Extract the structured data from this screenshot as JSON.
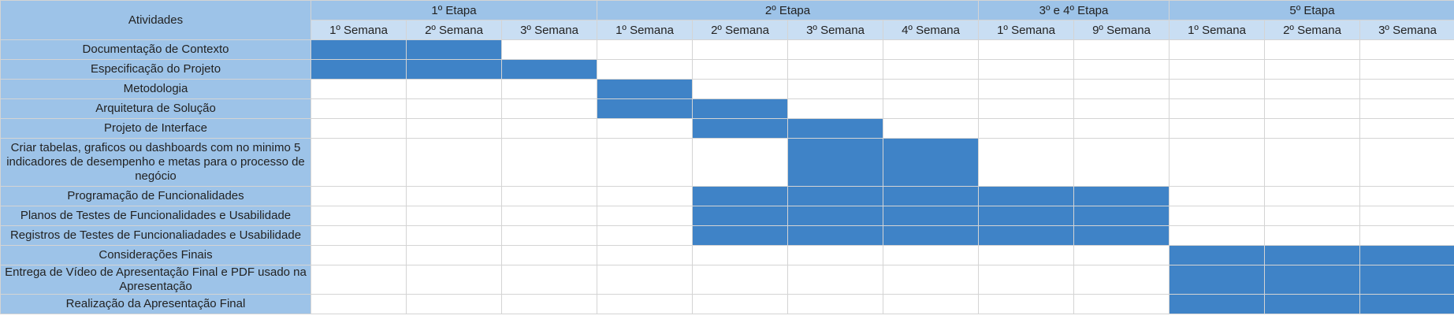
{
  "header": {
    "activities_label": "Atividades",
    "stages": [
      {
        "label": "1º Etapa",
        "span": 3
      },
      {
        "label": "2º Etapa",
        "span": 4
      },
      {
        "label": "3º e 4º Etapa",
        "span": 2
      },
      {
        "label": "5º Etapa",
        "span": 3
      }
    ],
    "weeks": [
      "1º Semana",
      "2º Semana",
      "3º Semana",
      "1º Semana",
      "2º Semana",
      "3º Semana",
      "4º Semana",
      "1º Semana",
      "9º Semana",
      "1º Semana",
      "2º Semana",
      "3º Semana"
    ]
  },
  "colors": {
    "filled": "#3f83c7",
    "header": "#9dc3e8",
    "week_header": "#c9def3"
  },
  "activities": [
    {
      "label": "Documentação de Contexto",
      "lines": 1,
      "filled": [
        0,
        1
      ]
    },
    {
      "label": "Especificação do Projeto",
      "lines": 1,
      "filled": [
        0,
        1,
        2
      ]
    },
    {
      "label": "Metodologia",
      "lines": 1,
      "filled": [
        3
      ]
    },
    {
      "label": "Arquitetura de Solução",
      "lines": 1,
      "filled": [
        3,
        4
      ]
    },
    {
      "label": "Projeto de Interface",
      "lines": 1,
      "filled": [
        4,
        5
      ]
    },
    {
      "label": "Criar tabelas, graficos ou dashboards com no minimo 5 indicadores de desempenho e metas para o processo de negócio",
      "lines": 3,
      "filled": [
        5,
        6
      ]
    },
    {
      "label": "Programação de Funcionalidades",
      "lines": 1,
      "filled": [
        4,
        5,
        6,
        7,
        8
      ]
    },
    {
      "label": "Planos de Testes de Funcionalidades e Usabilidade",
      "lines": 1,
      "filled": [
        4,
        5,
        6,
        7,
        8
      ]
    },
    {
      "label": "Registros de Testes de Funcionaliadades e Usabilidade",
      "lines": 1,
      "filled": [
        4,
        5,
        6,
        7,
        8
      ]
    },
    {
      "label": "Considerações Finais",
      "lines": 1,
      "filled": [
        9,
        10,
        11
      ]
    },
    {
      "label": "Entrega de Vídeo de Apresentação Final e PDF usado na Apresentação",
      "lines": 2,
      "filled": [
        9,
        10,
        11
      ]
    },
    {
      "label": "Realização da Apresentação Final",
      "lines": 1,
      "filled": [
        9,
        10,
        11
      ]
    }
  ]
}
